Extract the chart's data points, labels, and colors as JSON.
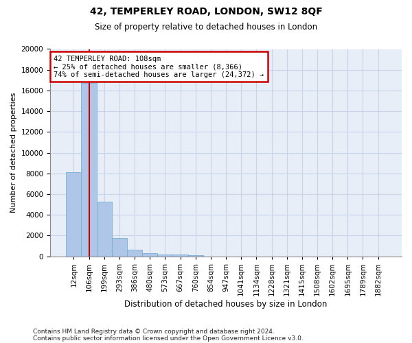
{
  "title": "42, TEMPERLEY ROAD, LONDON, SW12 8QF",
  "subtitle": "Size of property relative to detached houses in London",
  "xlabel": "Distribution of detached houses by size in London",
  "ylabel": "Number of detached properties",
  "footnote1": "Contains HM Land Registry data © Crown copyright and database right 2024.",
  "footnote2": "Contains public sector information licensed under the Open Government Licence v3.0.",
  "bar_color": "#aec6e8",
  "bar_edge_color": "#7aafd4",
  "grid_color": "#c8d4e8",
  "bg_color": "#e8eef8",
  "annotation_box_color": "#cc0000",
  "vline_color": "#cc0000",
  "annotation_line1": "42 TEMPERLEY ROAD: 108sqm",
  "annotation_line2": "← 25% of detached houses are smaller (8,366)",
  "annotation_line3": "74% of semi-detached houses are larger (24,372) →",
  "categories": [
    "12sqm",
    "106sqm",
    "199sqm",
    "293sqm",
    "386sqm",
    "480sqm",
    "573sqm",
    "667sqm",
    "760sqm",
    "854sqm",
    "947sqm",
    "1041sqm",
    "1134sqm",
    "1228sqm",
    "1321sqm",
    "1415sqm",
    "1508sqm",
    "1602sqm",
    "1695sqm",
    "1789sqm",
    "1882sqm"
  ],
  "bar_heights": [
    8100,
    16700,
    5300,
    1750,
    650,
    330,
    200,
    150,
    120,
    0,
    0,
    0,
    0,
    0,
    0,
    0,
    0,
    0,
    0,
    0,
    0
  ],
  "ylim": [
    0,
    20000
  ],
  "yticks": [
    0,
    2000,
    4000,
    6000,
    8000,
    10000,
    12000,
    14000,
    16000,
    18000,
    20000
  ],
  "vline_x_index": 1.0,
  "title_fontsize": 10,
  "subtitle_fontsize": 8.5,
  "xlabel_fontsize": 8.5,
  "ylabel_fontsize": 8,
  "tick_fontsize": 7.5,
  "annot_fontsize": 7.5,
  "footnote_fontsize": 6.5
}
